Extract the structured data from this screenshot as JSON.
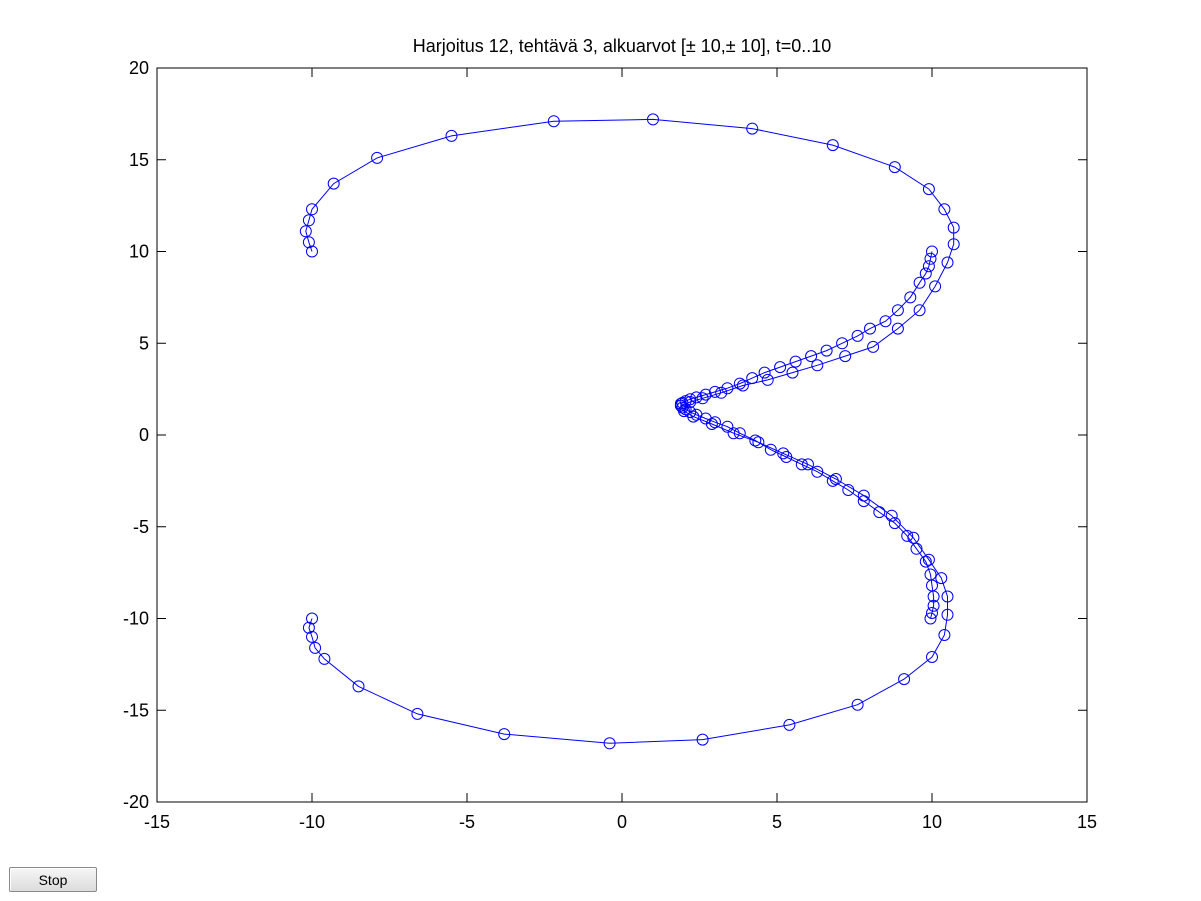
{
  "chart_data": {
    "type": "line",
    "title": "Harjoitus 12, tehtävä 3, alkuarvot [± 10,± 10], t=0..10",
    "xlabel": "",
    "ylabel": "",
    "xlim": [
      -15,
      15
    ],
    "ylim": [
      -20,
      20
    ],
    "xticks": [
      -15,
      -10,
      -5,
      0,
      5,
      10,
      15
    ],
    "yticks": [
      -20,
      -15,
      -10,
      -5,
      0,
      5,
      10,
      15,
      20
    ],
    "grid": false,
    "marker": "circle",
    "line_color": "#0000ff",
    "series": [
      {
        "values": [
          [
            -10,
            10
          ],
          [
            -10.1,
            10.5
          ],
          [
            -10.2,
            11.1
          ],
          [
            -10.1,
            11.7
          ],
          [
            -10,
            12.3
          ],
          [
            -9.3,
            13.7
          ],
          [
            -7.9,
            15.1
          ],
          [
            -5.5,
            16.3
          ],
          [
            -2.2,
            17.1
          ],
          [
            1.0,
            17.2
          ],
          [
            4.2,
            16.7
          ],
          [
            6.8,
            15.8
          ],
          [
            8.8,
            14.6
          ],
          [
            9.9,
            13.4
          ],
          [
            10.4,
            12.3
          ],
          [
            10.7,
            11.3
          ],
          [
            10.7,
            10.4
          ],
          [
            10.5,
            9.4
          ],
          [
            10.1,
            8.1
          ],
          [
            9.6,
            6.8
          ],
          [
            8.9,
            5.8
          ],
          [
            8.1,
            4.8
          ],
          [
            7.2,
            4.3
          ],
          [
            6.3,
            3.8
          ],
          [
            5.5,
            3.4
          ],
          [
            4.7,
            3.0
          ],
          [
            3.9,
            2.7
          ],
          [
            3.2,
            2.3
          ],
          [
            2.6,
            2.0
          ],
          [
            2.2,
            1.8
          ],
          [
            1.9,
            1.6
          ],
          [
            2.0,
            1.3
          ],
          [
            2.3,
            1.0
          ],
          [
            2.9,
            0.6
          ],
          [
            3.6,
            0.1
          ],
          [
            4.4,
            -0.4
          ],
          [
            5.2,
            -1.0
          ],
          [
            6.0,
            -1.6
          ],
          [
            6.9,
            -2.4
          ],
          [
            7.8,
            -3.3
          ],
          [
            8.7,
            -4.4
          ],
          [
            9.4,
            -5.6
          ],
          [
            9.9,
            -6.8
          ],
          [
            10.3,
            -7.8
          ],
          [
            10.5,
            -8.8
          ],
          [
            10.5,
            -9.8
          ],
          [
            10.4,
            -10.9
          ],
          [
            10.0,
            -12.1
          ],
          [
            9.1,
            -13.3
          ],
          [
            7.6,
            -14.7
          ],
          [
            5.4,
            -15.8
          ],
          [
            2.6,
            -16.6
          ],
          [
            -0.4,
            -16.8
          ],
          [
            -3.8,
            -16.3
          ],
          [
            -6.6,
            -15.2
          ],
          [
            -8.5,
            -13.7
          ],
          [
            -9.6,
            -12.2
          ],
          [
            -9.9,
            -11.6
          ],
          [
            -10.0,
            -11.0
          ],
          [
            -10.1,
            -10.5
          ],
          [
            -10.0,
            -10.0
          ]
        ]
      },
      {
        "values": [
          [
            10.0,
            10.0
          ],
          [
            9.95,
            9.6
          ],
          [
            9.9,
            9.2
          ],
          [
            9.8,
            8.8
          ],
          [
            9.6,
            8.3
          ],
          [
            9.3,
            7.5
          ],
          [
            8.9,
            6.8
          ],
          [
            8.5,
            6.2
          ],
          [
            8.0,
            5.8
          ],
          [
            7.6,
            5.4
          ],
          [
            7.1,
            5.0
          ],
          [
            6.6,
            4.6
          ],
          [
            6.1,
            4.3
          ],
          [
            5.6,
            4.0
          ],
          [
            5.1,
            3.7
          ],
          [
            4.6,
            3.4
          ],
          [
            4.2,
            3.1
          ],
          [
            3.8,
            2.8
          ],
          [
            3.4,
            2.55
          ],
          [
            3.0,
            2.35
          ],
          [
            2.7,
            2.2
          ],
          [
            2.4,
            2.05
          ],
          [
            2.2,
            1.95
          ],
          [
            2.05,
            1.85
          ],
          [
            1.95,
            1.75
          ],
          [
            1.9,
            1.7
          ],
          [
            1.9,
            1.6
          ],
          [
            1.95,
            1.5
          ],
          [
            2.05,
            1.4
          ],
          [
            2.2,
            1.25
          ],
          [
            2.4,
            1.1
          ],
          [
            2.7,
            0.9
          ],
          [
            3.0,
            0.7
          ],
          [
            3.4,
            0.45
          ],
          [
            3.8,
            0.1
          ],
          [
            4.3,
            -0.3
          ],
          [
            4.8,
            -0.8
          ],
          [
            5.3,
            -1.2
          ],
          [
            5.8,
            -1.6
          ],
          [
            6.3,
            -2.0
          ],
          [
            6.8,
            -2.5
          ],
          [
            7.3,
            -3.0
          ],
          [
            7.8,
            -3.6
          ],
          [
            8.3,
            -4.2
          ],
          [
            8.8,
            -4.8
          ],
          [
            9.2,
            -5.5
          ],
          [
            9.5,
            -6.2
          ],
          [
            9.8,
            -6.9
          ],
          [
            9.95,
            -7.6
          ],
          [
            10.0,
            -8.2
          ],
          [
            10.05,
            -8.8
          ],
          [
            10.05,
            -9.3
          ],
          [
            10.0,
            -9.7
          ],
          [
            9.95,
            -10.0
          ]
        ]
      }
    ]
  },
  "controls": {
    "stop_label": "Stop"
  }
}
